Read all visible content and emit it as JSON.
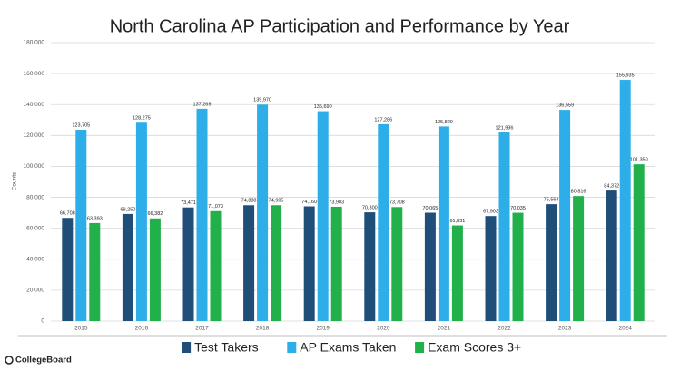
{
  "chart_data": {
    "type": "bar",
    "title": "North Carolina AP Participation and Performance by Year",
    "y_label": "Counts",
    "source": "CollegeBoard",
    "legend": "bottom",
    "grid": true,
    "categories": [
      "2015",
      "2016",
      "2017",
      "2018",
      "2019",
      "2020",
      "2021",
      "2022",
      "2023",
      "2024"
    ],
    "series": [
      {
        "name": "Test Takers",
        "color": "#1f4e79",
        "values": [
          66708,
          69250,
          73471,
          74888,
          74160,
          70300,
          70065,
          67903,
          75564,
          84372
        ],
        "value_labels": [
          "66,708",
          "69,250",
          "73,471",
          "74,888",
          "74,160",
          "70,300",
          "70,065",
          "67,903",
          "75,564",
          "84,372"
        ]
      },
      {
        "name": "AP Exams Taken",
        "color": "#2eaee8",
        "values": [
          123705,
          128275,
          137269,
          139970,
          135690,
          127286,
          125820,
          121936,
          136559,
          155935
        ],
        "value_labels": [
          "123,705",
          "128,275",
          "137,269",
          "139,970",
          "135,690",
          "127,286",
          "125,820",
          "121,936",
          "136,559",
          "155,935"
        ]
      },
      {
        "name": "Exam Scores 3+",
        "color": "#22b04b",
        "values": [
          63393,
          66382,
          71073,
          74905,
          73903,
          73708,
          61831,
          70035,
          80816,
          101350
        ],
        "value_labels": [
          "63,393",
          "66,382",
          "71,073",
          "74,905",
          "73,903",
          "73,708",
          "61,831",
          "70,035",
          "80,816",
          "101,350"
        ]
      }
    ],
    "ylim": [
      0,
      180000
    ],
    "yticks": [
      0,
      {
        "value": 20000,
        "label": "20,000"
      },
      {
        "value": 40000,
        "label": "40,000"
      },
      {
        "value": 60000,
        "label": "60,000"
      },
      {
        "value": 80000,
        "label": "80,000"
      },
      {
        "value": 100000,
        "label": "100,000"
      },
      {
        "value": 120000,
        "label": "120,000"
      },
      {
        "value": 140000,
        "label": "140,000"
      },
      {
        "value": 160000,
        "label": "160,000"
      },
      {
        "value": 180000,
        "label": "180,000"
      }
    ]
  }
}
